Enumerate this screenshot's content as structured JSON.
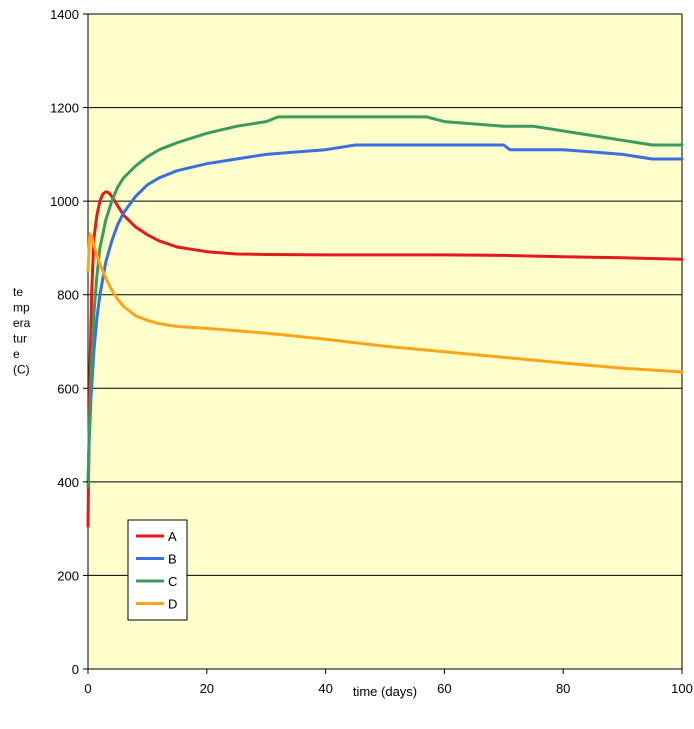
{
  "chart_data": {
    "type": "line",
    "title": "",
    "xlabel": "time (days)",
    "ylabel_lines": [
      "te",
      "mp",
      "era",
      "tur",
      "e",
      "(C)"
    ],
    "xlim": [
      0,
      100
    ],
    "ylim": [
      0,
      1400
    ],
    "x_ticks": [
      0,
      20,
      40,
      60,
      80,
      100
    ],
    "y_ticks": [
      0,
      200,
      400,
      600,
      800,
      1000,
      1200,
      1400
    ],
    "grid": "horizontal",
    "legend_position": "bottom-left",
    "colors": {
      "plot_background": "#ffffcc",
      "grid": "#000000",
      "A": "#e31a1c",
      "B": "#3a6fe0",
      "C": "#3d9a5e",
      "D": "#ffa41a"
    },
    "series": [
      {
        "name": "A",
        "x": [
          0,
          0.1,
          0.3,
          0.6,
          1.0,
          1.5,
          2.0,
          2.5,
          3.0,
          3.5,
          4.0,
          5.0,
          6.0,
          8.0,
          10.0,
          12.0,
          15.0,
          20.0,
          25.0,
          30.0,
          40.0,
          50.0,
          60.0,
          70.0,
          80.0,
          90.0,
          100.0
        ],
        "y": [
          305,
          420,
          620,
          800,
          920,
          970,
          1000,
          1015,
          1020,
          1018,
          1010,
          990,
          970,
          945,
          928,
          915,
          902,
          892,
          887,
          886,
          885,
          885,
          885,
          884,
          881,
          879,
          876
        ]
      },
      {
        "name": "B",
        "x": [
          0,
          0.2,
          0.5,
          1.0,
          1.5,
          2.0,
          3.0,
          4.0,
          5.0,
          6.0,
          8.0,
          10.0,
          12.0,
          15.0,
          20.0,
          25.0,
          30.0,
          35.0,
          40.0,
          45.0,
          50.0,
          60.0,
          70.0,
          71.0,
          80.0,
          85.0,
          90.0,
          95.0,
          100.0
        ],
        "y": [
          400,
          490,
          580,
          680,
          750,
          800,
          870,
          915,
          950,
          975,
          1010,
          1035,
          1050,
          1065,
          1080,
          1090,
          1100,
          1105,
          1110,
          1120,
          1120,
          1120,
          1120,
          1110,
          1110,
          1105,
          1100,
          1090,
          1090
        ]
      },
      {
        "name": "C",
        "x": [
          0,
          0.2,
          0.5,
          1.0,
          1.5,
          2.0,
          3.0,
          4.0,
          5.0,
          6.0,
          8.0,
          10.0,
          12.0,
          15.0,
          20.0,
          25.0,
          30.0,
          32.0,
          40.0,
          50.0,
          57.0,
          60.0,
          70.0,
          75.0,
          85.0,
          90.0,
          95.0,
          100.0
        ],
        "y": [
          390,
          500,
          620,
          760,
          840,
          900,
          960,
          1000,
          1030,
          1050,
          1075,
          1095,
          1110,
          1125,
          1145,
          1160,
          1170,
          1180,
          1180,
          1180,
          1180,
          1170,
          1160,
          1160,
          1140,
          1130,
          1120,
          1120
        ]
      },
      {
        "name": "D",
        "x": [
          0,
          0.3,
          0.6,
          1.0,
          1.5,
          2.0,
          3.0,
          4.0,
          5.0,
          6.0,
          8.0,
          10.0,
          12.0,
          15.0,
          20.0,
          30.0,
          40.0,
          50.0,
          60.0,
          70.0,
          80.0,
          90.0,
          100.0
        ],
        "y": [
          850,
          930,
          925,
          905,
          885,
          865,
          835,
          810,
          790,
          775,
          755,
          745,
          738,
          732,
          728,
          718,
          705,
          690,
          678,
          666,
          654,
          643,
          635
        ]
      }
    ]
  }
}
